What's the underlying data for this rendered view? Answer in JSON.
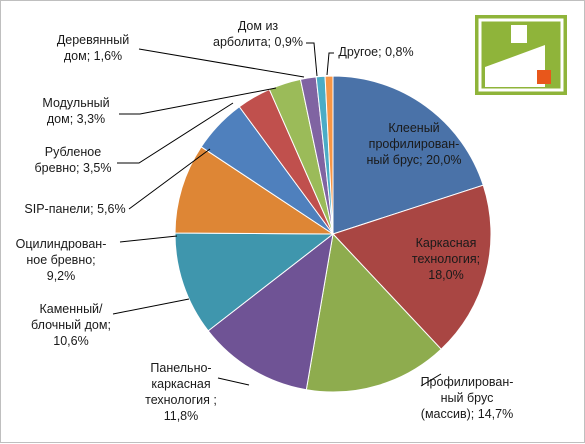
{
  "chart_data": {
    "type": "pie",
    "title": "",
    "legend": "none",
    "slices": [
      {
        "label": [
          "Клееный",
          "профилирован-",
          "ный брус; 20,0%"
        ],
        "value": 20.0,
        "color": "#4a72a8"
      },
      {
        "label": [
          "Каркасная",
          "технология;",
          "18,0%"
        ],
        "value": 18.0,
        "color": "#a94643"
      },
      {
        "label": [
          "Профилирован-",
          "ный брус",
          "(массив); 14,7%"
        ],
        "value": 14.7,
        "color": "#8eac4e"
      },
      {
        "label": [
          "Панельно-",
          "каркасная",
          "технология ;",
          "11,8%"
        ],
        "value": 11.8,
        "color": "#6f5395"
      },
      {
        "label": [
          "Каменный/",
          "блочный дом;",
          "10,6%"
        ],
        "value": 10.6,
        "color": "#3f96ad"
      },
      {
        "label": [
          "Оцилиндрован-",
          "ное бревно;",
          "9,2%"
        ],
        "value": 9.2,
        "color": "#de8635"
      },
      {
        "label": [
          "SIP-панели; 5,6%"
        ],
        "value": 5.6,
        "color": "#4f80bd"
      },
      {
        "label": [
          "Рубленое",
          "бревно; 3,5%"
        ],
        "value": 3.5,
        "color": "#c0504d"
      },
      {
        "label": [
          "Модульный",
          "дом; 3,3%"
        ],
        "value": 3.3,
        "color": "#9bbb59"
      },
      {
        "label": [
          "Деревянный",
          "дом; 1,6%"
        ],
        "value": 1.6,
        "color": "#8064a2"
      },
      {
        "label": [
          "Дом из",
          "арболита; 0,9%"
        ],
        "value": 0.9,
        "color": "#4bacc6"
      },
      {
        "label": [
          "Другое; 0,8%"
        ],
        "value": 0.8,
        "color": "#f79646"
      }
    ]
  },
  "logo": {
    "colors": {
      "green": "#8fb43a",
      "orange": "#e8571b",
      "white": "#ffffff"
    }
  }
}
